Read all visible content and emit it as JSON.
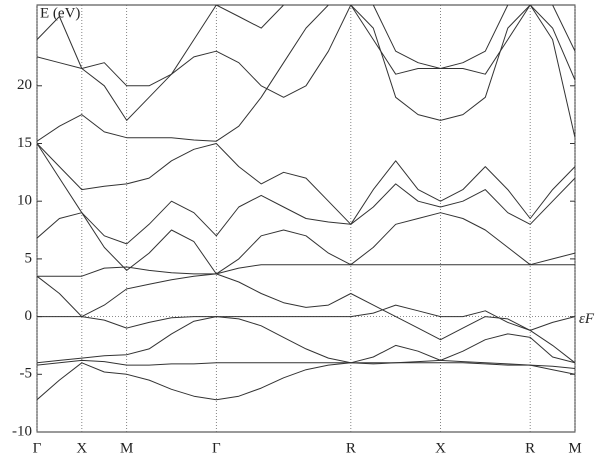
{
  "chart_data": {
    "type": "line",
    "y_label": "E (eV)",
    "annotation": "εF",
    "color": "#333333",
    "xlim": [
      0,
      12
    ],
    "ylim": [
      -10,
      27
    ],
    "xticks": [
      {
        "value": 0,
        "label": "Γ"
      },
      {
        "value": 1,
        "label": "X"
      },
      {
        "value": 2,
        "label": "M"
      },
      {
        "value": 4,
        "label": "Γ"
      },
      {
        "value": 7,
        "label": "R"
      },
      {
        "value": 9,
        "label": "X"
      },
      {
        "value": 11,
        "label": "R"
      },
      {
        "value": 12,
        "label": "M"
      }
    ],
    "yticks": [
      -10,
      -5,
      0,
      5,
      10,
      15,
      20
    ],
    "grid": true,
    "zero_line": true,
    "x": [
      0,
      0.5,
      1,
      1.5,
      2,
      2.5,
      3,
      3.5,
      4,
      4.5,
      5,
      5.5,
      6,
      6.5,
      7,
      7.5,
      8,
      8.5,
      9,
      9.5,
      10,
      10.5,
      11,
      11.5,
      12
    ],
    "series": [
      {
        "values": [
          -7.2,
          -5.5,
          -4.0,
          -4.8,
          -5,
          -5.5,
          -6.3,
          -6.9,
          -7.2,
          -6.9,
          -6.2,
          -5.3,
          -4.6,
          -4.2,
          -4.0,
          -4.1,
          -4.0,
          -4.0,
          -4.0,
          -4.0,
          -4.1,
          -4.2,
          -4.2,
          -4.6,
          -5.0
        ]
      },
      {
        "values": [
          -4.2,
          -4.0,
          -3.8,
          -3.9,
          -4.2,
          -4.2,
          -4.1,
          -4.1,
          -4.0,
          -4.0,
          -4.0,
          -4.0,
          -4.0,
          -4.0,
          -4.0,
          -4.0,
          -4.0,
          -3.9,
          -3.8,
          -3.9,
          -4.0,
          -4.1,
          -4.2,
          -4.3,
          -4.5
        ]
      },
      {
        "values": [
          -4.0,
          -3.8,
          -3.6,
          -3.4,
          -3.3,
          -2.8,
          -1.5,
          -0.4,
          0,
          -0.2,
          -0.8,
          -1.8,
          -2.8,
          -3.6,
          -4.0,
          -3.5,
          -2.5,
          -3.0,
          -3.8,
          -3.0,
          -2.0,
          -1.5,
          -1.8,
          -3.5,
          -4.0
        ]
      },
      {
        "values": [
          0,
          0,
          0,
          -0.3,
          -1.0,
          -0.5,
          -0.1,
          0,
          0,
          0,
          0,
          0,
          0,
          0,
          0,
          0.3,
          1,
          0.5,
          0,
          0,
          0.5,
          -0.5,
          -1.2,
          -0.5,
          0
        ]
      },
      {
        "values": [
          3.5,
          2,
          0,
          1,
          2.4,
          2.8,
          3.2,
          3.5,
          3.7,
          3.0,
          2.0,
          1.2,
          0.8,
          1.0,
          2.0,
          1.0,
          0,
          -1,
          -2,
          -1,
          0,
          -0.2,
          -1.2,
          -2.5,
          -4
        ]
      },
      {
        "values": [
          3.5,
          3.5,
          3.5,
          4.2,
          4.3,
          4.0,
          3.8,
          3.7,
          3.7,
          4.2,
          4.5,
          4.5,
          4.5,
          4.5,
          4.5,
          4.5,
          4.5,
          4.5,
          4.5,
          4.5,
          4.5,
          4.5,
          4.5,
          4.5,
          4.5
        ]
      },
      {
        "values": [
          6.8,
          8.5,
          9,
          6,
          4,
          5.5,
          7.5,
          6.5,
          3.7,
          5,
          7,
          7.5,
          7,
          5.5,
          4.5,
          6,
          8,
          8.5,
          9,
          8.5,
          7.5,
          6,
          4.5,
          5,
          5.5
        ]
      },
      {
        "values": [
          15,
          12,
          9,
          7,
          6.3,
          8,
          10,
          9,
          7,
          9.5,
          10.5,
          9.5,
          8.5,
          8.2,
          8,
          9.5,
          11.5,
          10,
          9.5,
          10,
          11,
          9,
          8,
          10,
          12
        ]
      },
      {
        "values": [
          15,
          13,
          11,
          11.3,
          11.5,
          12,
          13.5,
          14.5,
          15,
          13,
          11.5,
          12.5,
          12,
          10,
          8,
          11,
          13.5,
          11,
          10,
          11,
          13,
          11,
          8.5,
          11,
          13
        ]
      },
      {
        "values": [
          15.2,
          16.5,
          17.5,
          16,
          15.5,
          15.5,
          15.5,
          15.3,
          15.2,
          16.5,
          19,
          22,
          25,
          27,
          27,
          25,
          19,
          17.5,
          17,
          17.5,
          19,
          25,
          27,
          24,
          15.5
        ]
      },
      {
        "values": [
          22.5,
          22,
          21.5,
          20,
          17,
          19,
          21,
          22.5,
          23,
          22,
          20,
          19,
          20,
          23,
          27,
          24,
          21,
          21.5,
          21.5,
          21.5,
          21,
          24,
          27,
          25,
          20.5
        ]
      },
      {
        "values": [
          24,
          26,
          21.5,
          22,
          20,
          20,
          21,
          24,
          27,
          26,
          25,
          27,
          27,
          27,
          27,
          27,
          23,
          22,
          21.5,
          22,
          23,
          27,
          27,
          27,
          23
        ]
      }
    ]
  }
}
